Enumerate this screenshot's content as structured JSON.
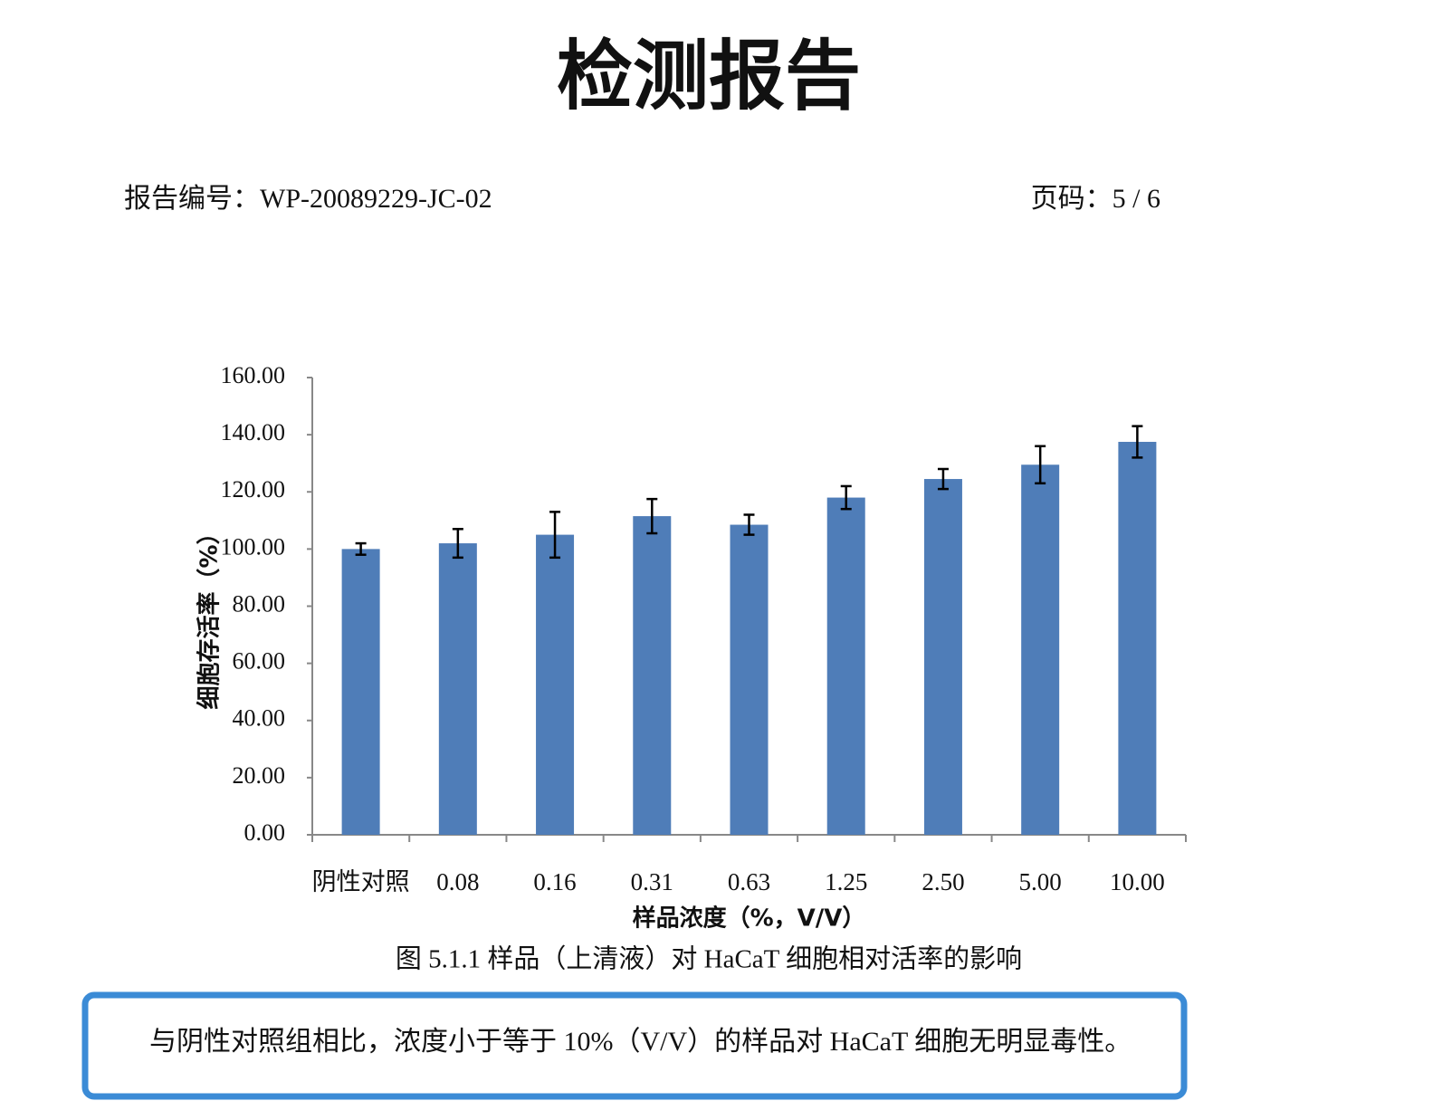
{
  "title": "检测报告",
  "report_no": "报告编号：WP-20089229-JC-02",
  "page": "页码：5 / 6",
  "chart_data": {
    "type": "bar",
    "y_label": "细胞存活率（%）",
    "x_label": "样品浓度（%，V/V）",
    "categories": [
      "阴性对照",
      "0.08",
      "0.16",
      "0.31",
      "0.63",
      "1.25",
      "2.50",
      "5.00",
      "10.00"
    ],
    "values": [
      100,
      102,
      105,
      111.5,
      108.5,
      118,
      124.5,
      129.5,
      137.5
    ],
    "errors": [
      2,
      5,
      8,
      6,
      3.5,
      4,
      3.5,
      6.5,
      5.5
    ],
    "color": "#4f7db8",
    "ylim": [
      0,
      160
    ],
    "yticks": [
      {
        "value": 0,
        "label": "0.00"
      },
      {
        "value": 20,
        "label": "20.00"
      },
      {
        "value": 40,
        "label": "40.00"
      },
      {
        "value": 60,
        "label": "60.00"
      },
      {
        "value": 80,
        "label": "80.00"
      },
      {
        "value": 100,
        "label": "100.00"
      },
      {
        "value": 120,
        "label": "120.00"
      },
      {
        "value": 140,
        "label": "140.00"
      },
      {
        "value": 160,
        "label": "160.00"
      }
    ],
    "grid": false
  },
  "caption": "图 5.1.1 样品（上清液）对 HaCaT 细胞相对活率的影响",
  "conclusion": "与阴性对照组相比，浓度小于等于 10%（V/V）的样品对 HaCaT 细胞无明显毒性。"
}
